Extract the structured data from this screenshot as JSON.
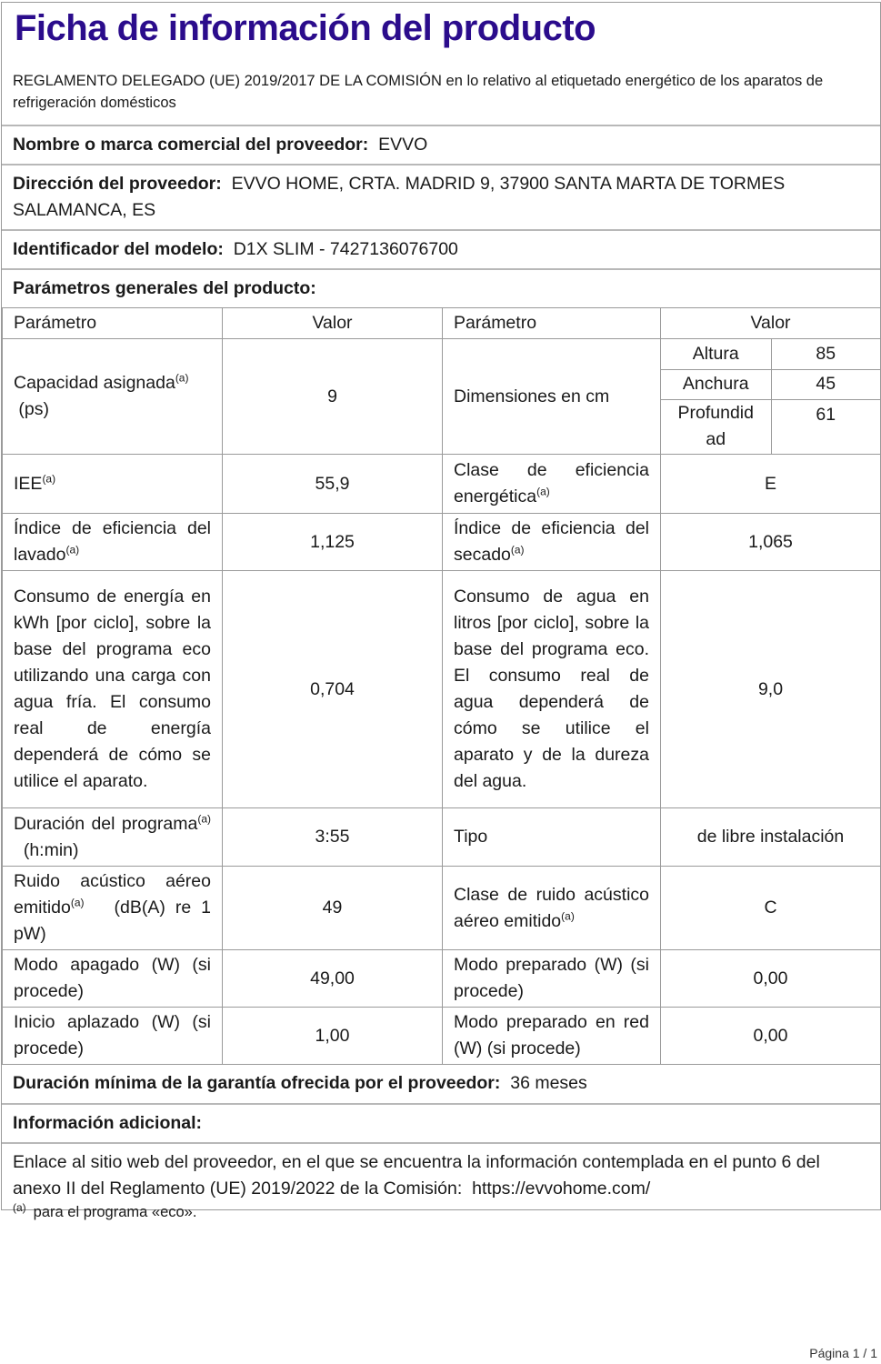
{
  "title": "Ficha de información del producto",
  "regulation": "REGLAMENTO DELEGADO (UE) 2019/2017 DE LA COMISIÓN en lo relativo al etiquetado energético de los aparatos de refrigeración domésticos",
  "supplier_name": {
    "label": "Nombre o marca comercial del proveedor:",
    "value": "EVVO"
  },
  "supplier_address": {
    "label": "Dirección del proveedor:",
    "value": "EVVO HOME, CRTA. MADRID 9, 37900 SANTA MARTA DE TORMES SALAMANCA, ES"
  },
  "model_id": {
    "label": "Identificador del modelo:",
    "value": "D1X SLIM - 7427136076700"
  },
  "general_params": "Parámetros generales del producto:",
  "table": {
    "headers": [
      "Parámetro",
      "Valor",
      "Parámetro",
      "Valor"
    ],
    "footnote_mark": "(a)",
    "capacity": {
      "label": "Capacidad asignada",
      "unit": "(ps)",
      "value": "9"
    },
    "dimensions": {
      "label": "Dimensiones en cm",
      "items": [
        {
          "name": "Altura",
          "value": "85"
        },
        {
          "name": "Anchura",
          "value": "45"
        },
        {
          "name": "Profundidad",
          "value": "61"
        }
      ]
    },
    "rows": [
      {
        "p1": "IEE",
        "s1": true,
        "v1": "55,9",
        "p2": "Clase de eficiencia energética",
        "s2": true,
        "v2": "E"
      },
      {
        "p1": "Índice de eficiencia del lavado",
        "s1": true,
        "v1": "1,125",
        "p2": "Índice de eficiencia del secado",
        "s2": true,
        "v2": "1,065"
      },
      {
        "p1": "Consumo de energía en kWh [por ciclo], sobre la base del programa eco utilizando una carga con agua fría. El consumo real de energía dependerá de cómo se utilice el aparato.",
        "s1": false,
        "v1": "0,704",
        "p2": "Consumo de agua en litros [por ciclo], sobre la base del programa eco. El consumo real de agua dependerá de cómo se utilice el aparato y de la dureza del agua.",
        "s2": false,
        "v2": "9,0"
      },
      {
        "p1": "Duración del programa",
        "p1b": "(h:min)",
        "s1": true,
        "v1": "3:55",
        "p2": "Tipo",
        "s2": false,
        "v2": "de libre instalación"
      },
      {
        "p1": "Ruido acústico aéreo emitido",
        "p1b": "(dB(A) re 1 pW)",
        "s1": true,
        "v1": "49",
        "p2": "Clase de ruido acústico aéreo emitido",
        "s2": true,
        "v2": "C"
      },
      {
        "p1": "Modo apagado (W) (si procede)",
        "s1": false,
        "v1": "49,00",
        "p2": "Modo preparado (W) (si procede)",
        "s2": false,
        "v2": "0,00"
      },
      {
        "p1": "Inicio aplazado (W) (si procede)",
        "s1": false,
        "v1": "1,00",
        "p2": "Modo preparado en red (W) (si procede)",
        "s2": false,
        "v2": "0,00"
      }
    ]
  },
  "warranty": {
    "label": "Duración mínima de la garantía ofrecida por el proveedor:",
    "value": "36 meses"
  },
  "additional_info": "Información adicional:",
  "link_text": "Enlace al sitio web del proveedor, en el que se encuentra la información contemplada en el punto 6 del anexo II del Reglamento (UE) 2019/2022 de la Comisión:",
  "link_url": "https://evvohome.com/",
  "footnote": {
    "mark": "(a)",
    "text": "para el programa «eco»."
  },
  "page_label": "Página 1 / 1",
  "colors": {
    "title": "#2b0c8c",
    "border": "#9a9a9a"
  }
}
